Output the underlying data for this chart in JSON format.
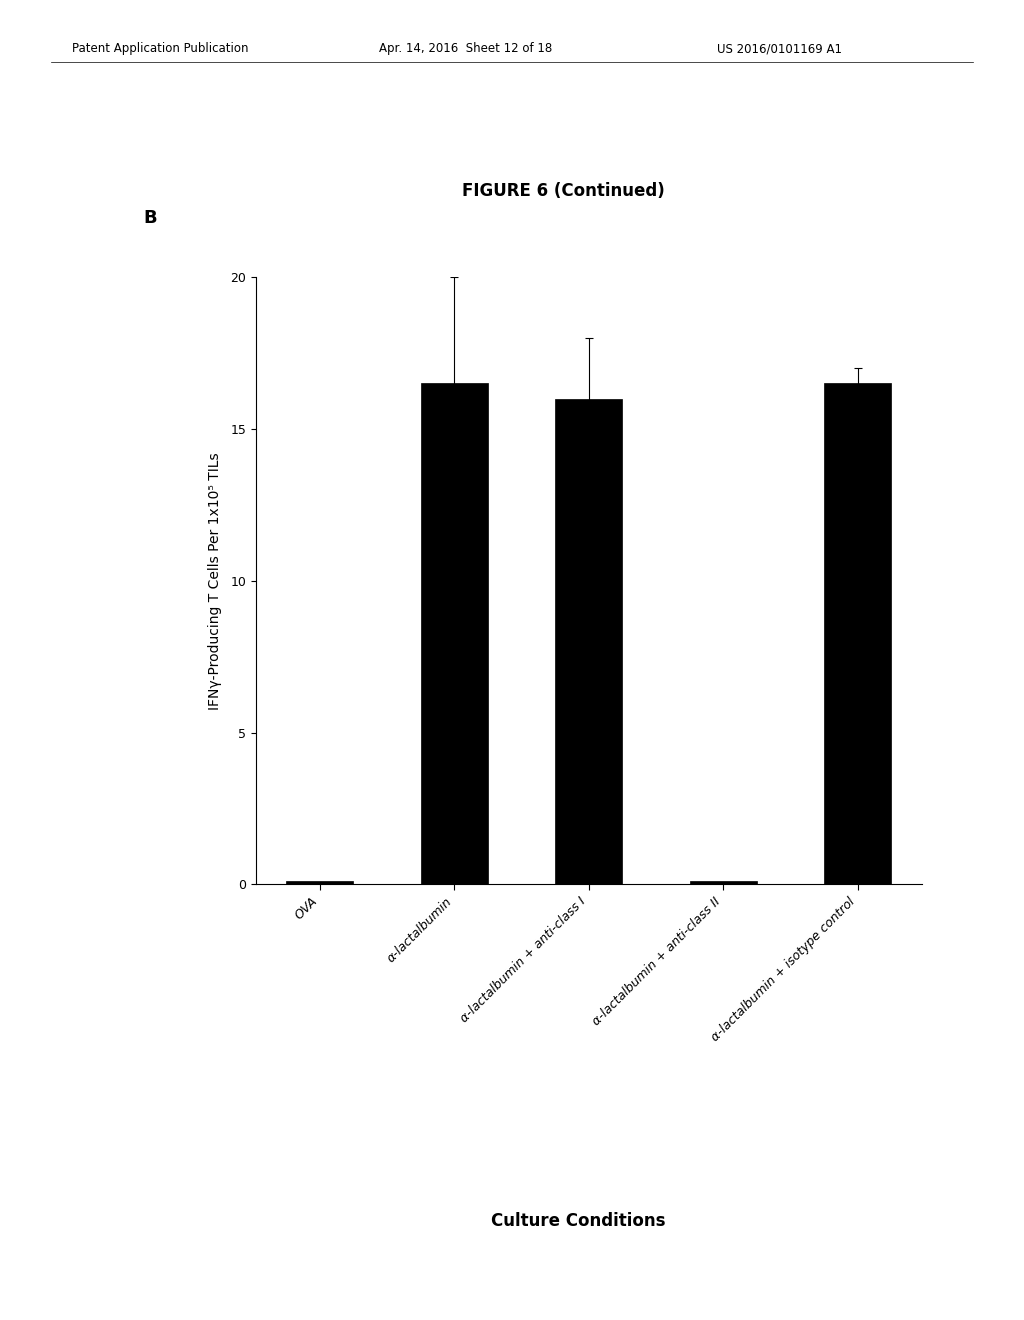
{
  "title": "FIGURE 6 (Continued)",
  "panel_label": "B",
  "categories": [
    "OVA",
    "α-lactalbumin",
    "α-lactalbumin + anti-class I",
    "α-lactalbumin + anti-class II",
    "α-lactalbumin + isotype control"
  ],
  "values": [
    0.1,
    16.5,
    16.0,
    0.1,
    16.5
  ],
  "errors": [
    0.0,
    3.5,
    2.0,
    0.0,
    0.5
  ],
  "bar_color": "#000000",
  "ylabel": "IFNγ-Producing T Cells Per 1x10⁵ TILs",
  "xlabel": "Culture Conditions",
  "ylim": [
    0,
    20
  ],
  "yticks": [
    0,
    5,
    10,
    15,
    20
  ],
  "header_left": "Patent Application Publication",
  "header_mid": "Apr. 14, 2016  Sheet 12 of 18",
  "header_right": "US 2016/0101169 A1",
  "title_fontsize": 12,
  "label_fontsize": 10,
  "tick_fontsize": 9,
  "xlabel_fontsize": 12,
  "bar_width": 0.5,
  "background_color": "#ffffff"
}
